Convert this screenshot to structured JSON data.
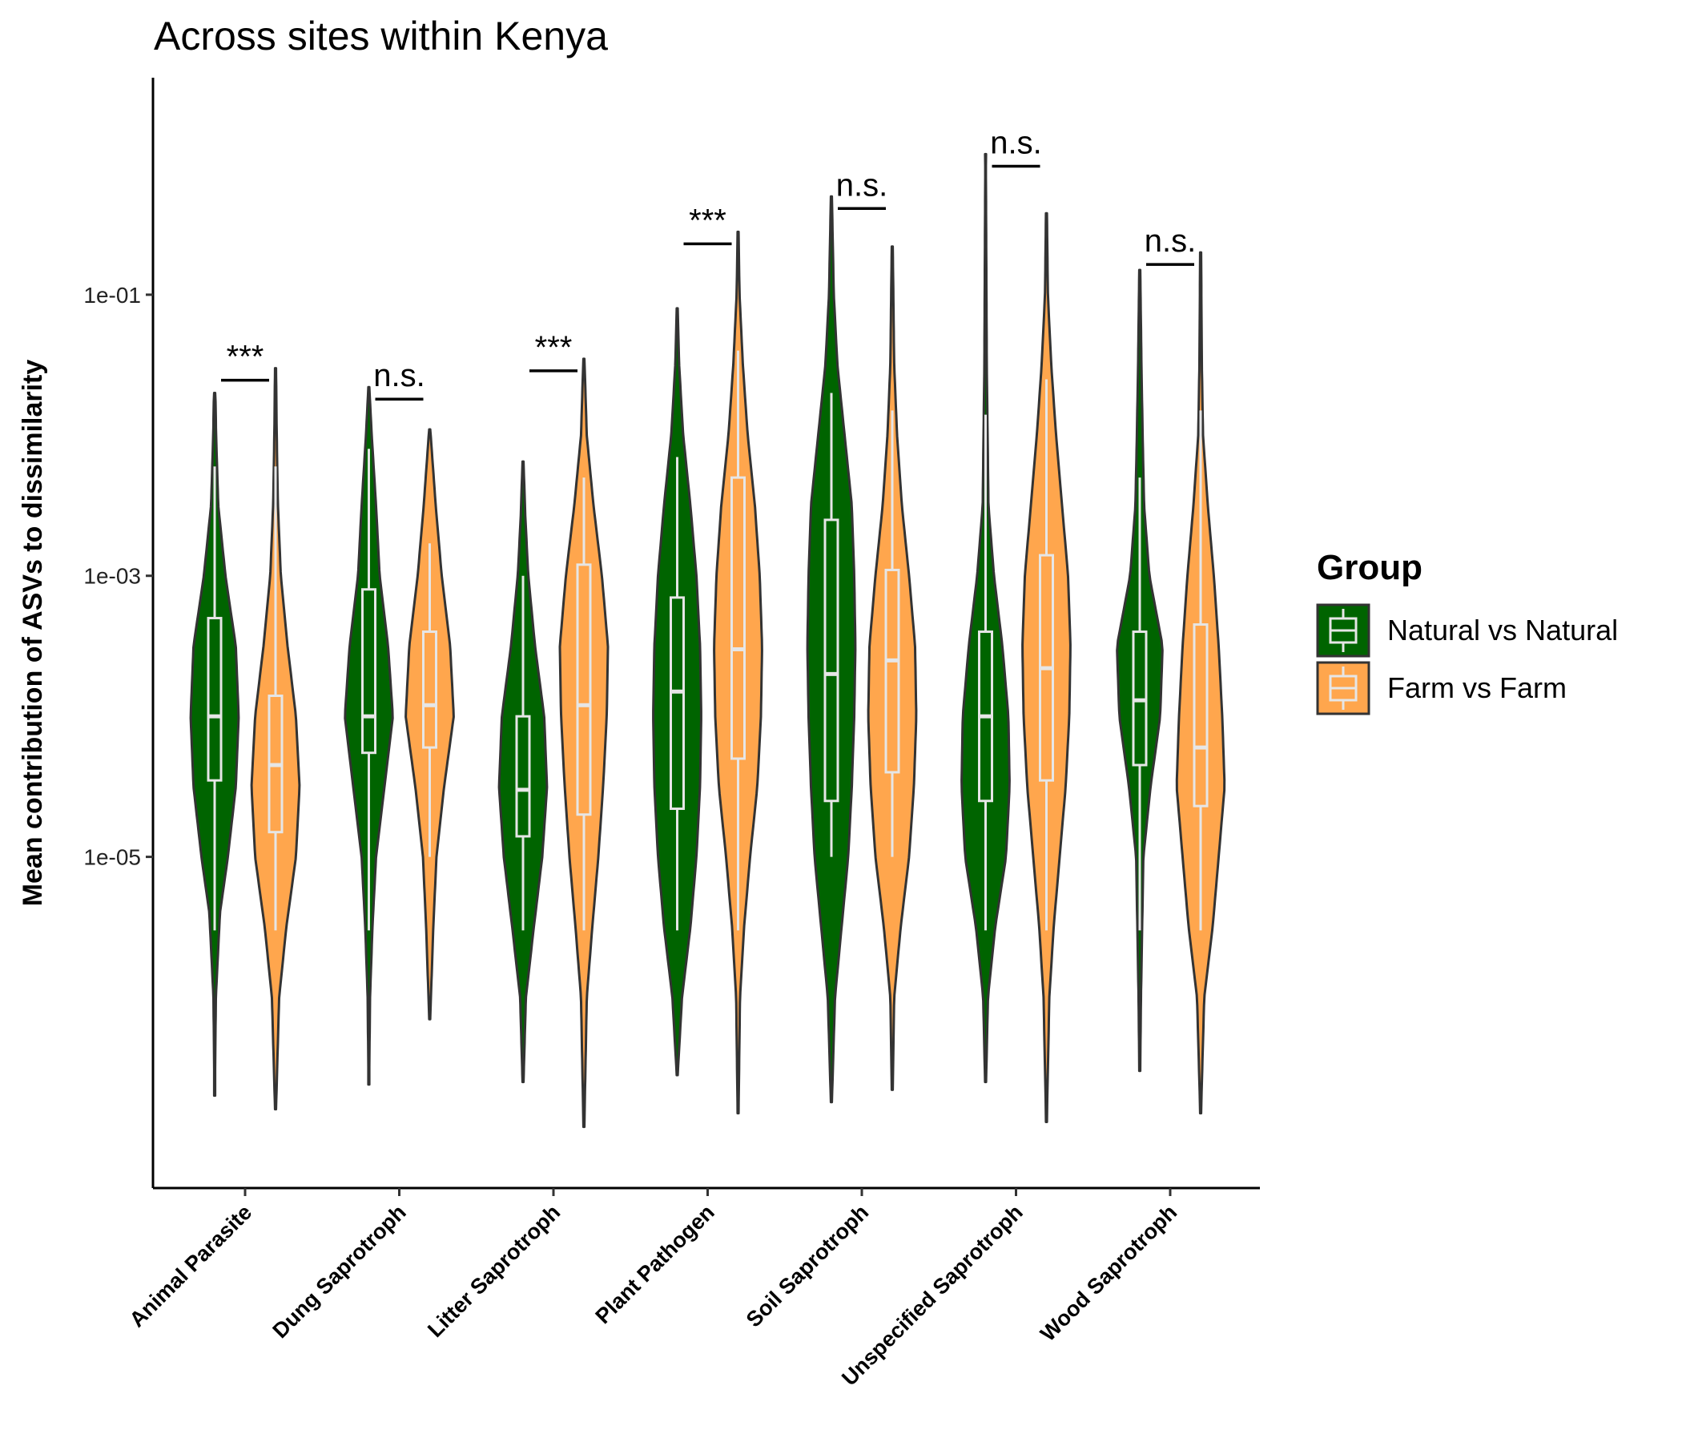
{
  "chart_data": {
    "type": "violin",
    "title": "Across sites within Kenya",
    "ylabel": "Mean contribution of ASVs to dissimilarity",
    "xlabel": "",
    "y_scale": "log10",
    "ylim": [
      4.4e-08,
      3.5
    ],
    "y_ticks": [
      {
        "value": 0.1,
        "label": "1e-01"
      },
      {
        "value": 0.001,
        "label": "1e-03"
      },
      {
        "value": 1e-05,
        "label": "1e-05"
      }
    ],
    "grid": false,
    "legend": {
      "title": "Group",
      "placement": "right",
      "entries": [
        {
          "name": "Natural vs Natural",
          "color": "#006400"
        },
        {
          "name": "Farm vs Farm",
          "color": "#FFA64D"
        }
      ]
    },
    "categories": [
      "Animal Parasite",
      "Dung Saprotroph",
      "Litter Saprotroph",
      "Plant Pathogen",
      "Soil Saprotroph",
      "Unspecified Saprotroph",
      "Wood Saprotroph"
    ],
    "significance": [
      "***",
      "n.s.",
      "***",
      "***",
      "n.s.",
      "n.s.",
      "n.s."
    ],
    "series": [
      {
        "name": "Natural vs Natural",
        "color": "#006400",
        "violins": [
          {
            "min": 2e-07,
            "max": 0.02,
            "q1": 3.5e-05,
            "median": 0.0001,
            "q3": 0.0005,
            "wlo": 3e-06,
            "whi": 0.006,
            "profile": [
              [
                -6.5,
                0.02
              ],
              [
                -6,
                0.05
              ],
              [
                -5.4,
                0.22
              ],
              [
                -5,
                0.55
              ],
              [
                -4.5,
                0.88
              ],
              [
                -4,
                1.0
              ],
              [
                -3.5,
                0.88
              ],
              [
                -3,
                0.45
              ],
              [
                -2.5,
                0.15
              ],
              [
                -2,
                0.06
              ],
              [
                -1.6,
                0.02
              ]
            ]
          },
          {
            "min": 2.4e-07,
            "max": 0.022,
            "q1": 5.5e-05,
            "median": 0.0001,
            "q3": 0.0008,
            "wlo": 3e-06,
            "whi": 0.008,
            "profile": [
              [
                -6.5,
                0.02
              ],
              [
                -6,
                0.05
              ],
              [
                -5.5,
                0.15
              ],
              [
                -5,
                0.3
              ],
              [
                -4.5,
                0.65
              ],
              [
                -4,
                1.0
              ],
              [
                -3.5,
                0.8
              ],
              [
                -3,
                0.45
              ],
              [
                -2.5,
                0.3
              ],
              [
                -2,
                0.12
              ],
              [
                -1.66,
                0.02
              ]
            ]
          },
          {
            "min": 2.5e-07,
            "max": 0.0065,
            "q1": 1.4e-05,
            "median": 3e-05,
            "q3": 0.0001,
            "wlo": 3e-06,
            "whi": 0.001,
            "profile": [
              [
                -6.6,
                0.02
              ],
              [
                -6,
                0.12
              ],
              [
                -5.5,
                0.45
              ],
              [
                -5,
                0.8
              ],
              [
                -4.5,
                1.0
              ],
              [
                -4,
                0.88
              ],
              [
                -3.5,
                0.5
              ],
              [
                -3,
                0.22
              ],
              [
                -2.6,
                0.1
              ],
              [
                -2.19,
                0.02
              ]
            ]
          },
          {
            "min": 2.8e-07,
            "max": 0.08,
            "q1": 2.2e-05,
            "median": 0.00015,
            "q3": 0.0007,
            "wlo": 3e-06,
            "whi": 0.007,
            "profile": [
              [
                -6.55,
                0.02
              ],
              [
                -6,
                0.2
              ],
              [
                -5.5,
                0.55
              ],
              [
                -5,
                0.8
              ],
              [
                -4.5,
                0.95
              ],
              [
                -4,
                1.0
              ],
              [
                -3.5,
                0.95
              ],
              [
                -3,
                0.8
              ],
              [
                -2.5,
                0.55
              ],
              [
                -2,
                0.25
              ],
              [
                -1.5,
                0.08
              ],
              [
                -1.1,
                0.02
              ]
            ]
          },
          {
            "min": 1.8e-07,
            "max": 0.5,
            "q1": 2.5e-05,
            "median": 0.0002,
            "q3": 0.0025,
            "wlo": 1e-05,
            "whi": 0.02,
            "profile": [
              [
                -6.75,
                0.02
              ],
              [
                -6,
                0.15
              ],
              [
                -5,
                0.7
              ],
              [
                -4.5,
                0.85
              ],
              [
                -4,
                0.95
              ],
              [
                -3.5,
                1.0
              ],
              [
                -3,
                0.95
              ],
              [
                -2.5,
                0.85
              ],
              [
                -2,
                0.55
              ],
              [
                -1.5,
                0.25
              ],
              [
                -1,
                0.1
              ],
              [
                -0.3,
                0.02
              ]
            ]
          },
          {
            "min": 2.5e-07,
            "max": 1.0,
            "q1": 2.5e-05,
            "median": 0.0001,
            "q3": 0.0004,
            "wlo": 3e-06,
            "whi": 0.014,
            "profile": [
              [
                -6.6,
                0.02
              ],
              [
                -6,
                0.1
              ],
              [
                -5.5,
                0.4
              ],
              [
                -5,
                0.85
              ],
              [
                -4.5,
                1.0
              ],
              [
                -4,
                0.95
              ],
              [
                -3.5,
                0.7
              ],
              [
                -3,
                0.35
              ],
              [
                -2.5,
                0.12
              ],
              [
                -1.5,
                0.05
              ],
              [
                0,
                0.01
              ]
            ]
          },
          {
            "min": 3e-07,
            "max": 0.15,
            "q1": 4.5e-05,
            "median": 0.00013,
            "q3": 0.0004,
            "wlo": 3e-06,
            "whi": 0.005,
            "profile": [
              [
                -6.5,
                0.02
              ],
              [
                -6,
                0.05
              ],
              [
                -5,
                0.15
              ],
              [
                -4.5,
                0.45
              ],
              [
                -4,
                0.85
              ],
              [
                -3.5,
                0.95
              ],
              [
                -3,
                0.4
              ],
              [
                -2.5,
                0.18
              ],
              [
                -2,
                0.12
              ],
              [
                -1.5,
                0.07
              ],
              [
                -0.82,
                0.02
              ]
            ]
          }
        ]
      },
      {
        "name": "Farm vs Farm",
        "color": "#FFA64D",
        "violins": [
          {
            "min": 1.6e-07,
            "max": 0.03,
            "q1": 1.5e-05,
            "median": 4.5e-05,
            "q3": 0.00014,
            "wlo": 3e-06,
            "whi": 0.006,
            "profile": [
              [
                -6.8,
                0.02
              ],
              [
                -6,
                0.15
              ],
              [
                -5.5,
                0.45
              ],
              [
                -5,
                0.85
              ],
              [
                -4.5,
                1.0
              ],
              [
                -4,
                0.85
              ],
              [
                -3.5,
                0.5
              ],
              [
                -3,
                0.22
              ],
              [
                -2.5,
                0.1
              ],
              [
                -2,
                0.05
              ],
              [
                -1.52,
                0.02
              ]
            ]
          },
          {
            "min": 7e-07,
            "max": 0.011,
            "q1": 6e-05,
            "median": 0.00012,
            "q3": 0.0004,
            "wlo": 1e-05,
            "whi": 0.0017,
            "profile": [
              [
                -6.15,
                0.02
              ],
              [
                -5.5,
                0.15
              ],
              [
                -5,
                0.28
              ],
              [
                -4.5,
                0.6
              ],
              [
                -4,
                1.0
              ],
              [
                -3.5,
                0.85
              ],
              [
                -3,
                0.5
              ],
              [
                -2.5,
                0.25
              ],
              [
                -1.95,
                0.02
              ]
            ]
          },
          {
            "min": 1.2e-07,
            "max": 0.035,
            "q1": 2e-05,
            "median": 0.00012,
            "q3": 0.0012,
            "wlo": 3e-06,
            "whi": 0.005,
            "profile": [
              [
                -6.9,
                0.02
              ],
              [
                -6,
                0.12
              ],
              [
                -5.5,
                0.35
              ],
              [
                -5,
                0.6
              ],
              [
                -4.5,
                0.8
              ],
              [
                -4,
                0.95
              ],
              [
                -3.5,
                1.0
              ],
              [
                -3,
                0.75
              ],
              [
                -2.5,
                0.4
              ],
              [
                -2,
                0.12
              ],
              [
                -1.45,
                0.02
              ]
            ]
          },
          {
            "min": 1.5e-07,
            "max": 0.28,
            "q1": 5e-05,
            "median": 0.0003,
            "q3": 0.005,
            "wlo": 3e-06,
            "whi": 0.04,
            "profile": [
              [
                -6.8,
                0.02
              ],
              [
                -6,
                0.08
              ],
              [
                -5.5,
                0.25
              ],
              [
                -5,
                0.5
              ],
              [
                -4.5,
                0.8
              ],
              [
                -4,
                0.95
              ],
              [
                -3.5,
                1.0
              ],
              [
                -3,
                0.9
              ],
              [
                -2.5,
                0.7
              ],
              [
                -2,
                0.4
              ],
              [
                -1.5,
                0.2
              ],
              [
                -1,
                0.06
              ],
              [
                -0.55,
                0.02
              ]
            ]
          },
          {
            "min": 2.2e-07,
            "max": 0.22,
            "q1": 4e-05,
            "median": 0.00025,
            "q3": 0.0011,
            "wlo": 1e-05,
            "whi": 0.015,
            "profile": [
              [
                -6.65,
                0.02
              ],
              [
                -6,
                0.08
              ],
              [
                -5.5,
                0.35
              ],
              [
                -5,
                0.7
              ],
              [
                -4.5,
                0.9
              ],
              [
                -4,
                1.0
              ],
              [
                -3.5,
                0.95
              ],
              [
                -3,
                0.7
              ],
              [
                -2.5,
                0.4
              ],
              [
                -2,
                0.2
              ],
              [
                -1.5,
                0.08
              ],
              [
                -0.65,
                0.02
              ]
            ]
          },
          {
            "min": 1.3e-07,
            "max": 0.38,
            "q1": 3.5e-05,
            "median": 0.00022,
            "q3": 0.0014,
            "wlo": 3e-06,
            "whi": 0.025,
            "profile": [
              [
                -6.85,
                0.02
              ],
              [
                -6,
                0.12
              ],
              [
                -5.5,
                0.3
              ],
              [
                -5,
                0.55
              ],
              [
                -4.5,
                0.8
              ],
              [
                -4,
                0.95
              ],
              [
                -3.5,
                1.0
              ],
              [
                -3,
                0.9
              ],
              [
                -2.5,
                0.65
              ],
              [
                -2,
                0.4
              ],
              [
                -1.5,
                0.2
              ],
              [
                -1,
                0.06
              ],
              [
                -0.42,
                0.02
              ]
            ]
          },
          {
            "min": 1.5e-07,
            "max": 0.2,
            "q1": 2.3e-05,
            "median": 6e-05,
            "q3": 0.00045,
            "wlo": 3e-06,
            "whi": 0.015,
            "profile": [
              [
                -6.8,
                0.02
              ],
              [
                -6,
                0.15
              ],
              [
                -5.5,
                0.5
              ],
              [
                -5,
                0.75
              ],
              [
                -4.5,
                1.0
              ],
              [
                -4,
                0.9
              ],
              [
                -3.5,
                0.75
              ],
              [
                -3,
                0.55
              ],
              [
                -2.5,
                0.3
              ],
              [
                -2,
                0.1
              ],
              [
                -1.5,
                0.05
              ],
              [
                -0.7,
                0.02
              ]
            ]
          }
        ]
      }
    ]
  }
}
